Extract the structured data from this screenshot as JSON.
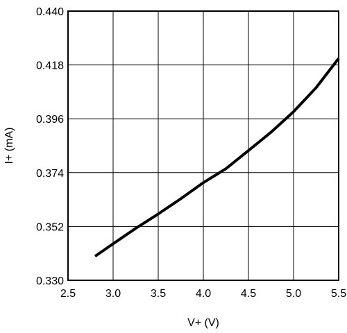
{
  "chart_data": {
    "type": "line",
    "title": "",
    "xlabel": "V+ (V)",
    "ylabel": "I+ (mA)",
    "xlim": [
      2.5,
      5.5
    ],
    "ylim": [
      0.33,
      0.44
    ],
    "grid": true,
    "x_ticks": [
      2.5,
      3.0,
      3.5,
      4.0,
      4.5,
      5.0,
      5.5
    ],
    "x_tick_labels": [
      "2.5",
      "3.0",
      "3.5",
      "4.0",
      "4.5",
      "5.0",
      "5.5"
    ],
    "y_ticks": [
      0.33,
      0.352,
      0.374,
      0.396,
      0.418,
      0.44
    ],
    "y_tick_labels": [
      "0.330",
      "0.352",
      "0.374",
      "0.396",
      "0.418",
      "0.440"
    ],
    "series": [
      {
        "x": [
          2.8,
          3.0,
          3.25,
          3.5,
          3.75,
          4.0,
          4.25,
          4.5,
          4.75,
          5.0,
          5.25,
          5.5
        ],
        "y": [
          0.3398,
          0.3449,
          0.3512,
          0.3571,
          0.3633,
          0.3699,
          0.3756,
          0.383,
          0.3905,
          0.3989,
          0.4087,
          0.4207
        ]
      }
    ],
    "line_color": "#000000",
    "grid_color": "#000000"
  }
}
